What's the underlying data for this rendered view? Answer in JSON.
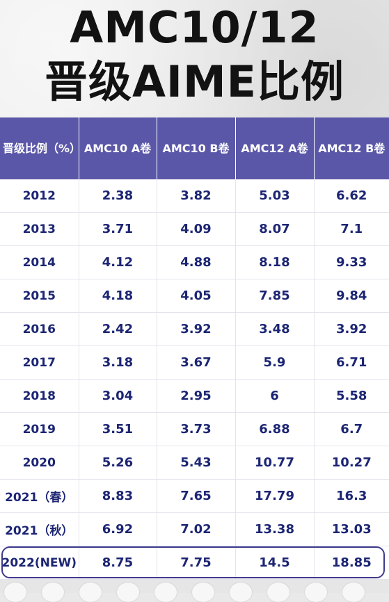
{
  "title": {
    "line1": "AMC10/12",
    "line2": "晋级AIME比例"
  },
  "table": {
    "headers": [
      "晋级比例（%）",
      "AMC10 A卷",
      "AMC10 B卷",
      "AMC12 A卷",
      "AMC12 B卷"
    ],
    "rows": [
      [
        "2012",
        "2.38",
        "3.82",
        "5.03",
        "6.62"
      ],
      [
        "2013",
        "3.71",
        "4.09",
        "8.07",
        "7.1"
      ],
      [
        "2014",
        "4.12",
        "4.88",
        "8.18",
        "9.33"
      ],
      [
        "2015",
        "4.18",
        "4.05",
        "7.85",
        "9.84"
      ],
      [
        "2016",
        "2.42",
        "3.92",
        "3.48",
        "3.92"
      ],
      [
        "2017",
        "3.18",
        "3.67",
        "5.9",
        "6.71"
      ],
      [
        "2018",
        "3.04",
        "2.95",
        "6",
        "5.58"
      ],
      [
        "2019",
        "3.51",
        "3.73",
        "6.88",
        "6.7"
      ],
      [
        "2020",
        "5.26",
        "5.43",
        "10.77",
        "10.27"
      ],
      [
        "2021（春）",
        "8.83",
        "7.65",
        "17.79",
        "16.3"
      ],
      [
        "2021（秋）",
        "6.92",
        "7.02",
        "13.38",
        "13.03"
      ],
      [
        "2022(NEW)",
        "8.75",
        "7.75",
        "14.5",
        "18.85"
      ]
    ]
  },
  "colors": {
    "header_bg": "#5b57a8",
    "cell_text": "#1c2573",
    "highlight_border": "#3d3a8c"
  }
}
